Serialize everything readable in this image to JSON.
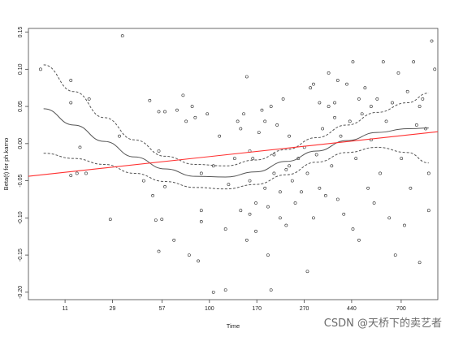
{
  "chart_data": {
    "type": "scatter",
    "xlabel": "Time",
    "ylabel": "Beta(t) for ph.karno",
    "xticks": [
      "11",
      "29",
      "57",
      "100",
      "170",
      "270",
      "440",
      "700"
    ],
    "yticks": [
      -0.2,
      -0.15,
      -0.1,
      -0.05,
      0.0,
      0.05,
      0.1,
      0.15
    ],
    "xlim": [
      0,
      13.5
    ],
    "ylim": [
      -0.21,
      0.155
    ],
    "grid": false,
    "points": [
      [
        0.4,
        0.1
      ],
      [
        1.4,
        0.085
      ],
      [
        1.4,
        0.055
      ],
      [
        1.7,
        -0.005
      ],
      [
        1.6,
        -0.04
      ],
      [
        1.4,
        -0.043
      ],
      [
        2.0,
        0.06
      ],
      [
        1.9,
        -0.04
      ],
      [
        2.7,
        -0.102
      ],
      [
        3.1,
        0.145
      ],
      [
        3.0,
        0.01
      ],
      [
        4.0,
        0.058
      ],
      [
        4.3,
        0.043
      ],
      [
        4.5,
        0.043
      ],
      [
        4.1,
        -0.07
      ],
      [
        4.2,
        -0.103
      ],
      [
        4.3,
        -0.01
      ],
      [
        4.5,
        -0.058
      ],
      [
        4.4,
        -0.102
      ],
      [
        4.3,
        -0.145
      ],
      [
        4.9,
        0.045
      ],
      [
        5.1,
        0.065
      ],
      [
        5.4,
        0.05
      ],
      [
        5.5,
        0.035
      ],
      [
        5.7,
        -0.04
      ],
      [
        5.9,
        0.04
      ],
      [
        4.8,
        -0.13
      ],
      [
        5.3,
        -0.15
      ],
      [
        5.6,
        -0.158
      ],
      [
        5.7,
        -0.09
      ],
      [
        5.7,
        -0.105
      ],
      [
        6.1,
        -0.2
      ],
      [
        6.5,
        -0.197
      ],
      [
        6.3,
        0.01
      ],
      [
        6.1,
        -0.03
      ],
      [
        6.5,
        -0.115
      ],
      [
        6.8,
        -0.02
      ],
      [
        6.9,
        0.03
      ],
      [
        7.0,
        -0.09
      ],
      [
        7.0,
        0.02
      ],
      [
        7.1,
        0.04
      ],
      [
        7.2,
        0.09
      ],
      [
        7.3,
        -0.01
      ],
      [
        7.3,
        -0.095
      ],
      [
        7.3,
        -0.05
      ],
      [
        7.4,
        -0.02
      ],
      [
        7.5,
        -0.08
      ],
      [
        7.5,
        -0.118
      ],
      [
        7.6,
        0.015
      ],
      [
        7.7,
        0.045
      ],
      [
        7.8,
        0.03
      ],
      [
        7.8,
        -0.06
      ],
      [
        7.9,
        -0.085
      ],
      [
        7.9,
        -0.15
      ],
      [
        8.0,
        -0.197
      ],
      [
        8.0,
        0.05
      ],
      [
        8.1,
        -0.04
      ],
      [
        8.1,
        -0.015
      ],
      [
        8.2,
        0.025
      ],
      [
        8.3,
        -0.1
      ],
      [
        8.3,
        -0.065
      ],
      [
        8.4,
        0.06
      ],
      [
        8.5,
        -0.035
      ],
      [
        8.5,
        -0.11
      ],
      [
        8.6,
        0.01
      ],
      [
        8.7,
        -0.05
      ],
      [
        8.8,
        -0.08
      ],
      [
        8.9,
        -0.02
      ],
      [
        9.0,
        -0.065
      ],
      [
        9.1,
        -0.005
      ],
      [
        9.2,
        -0.04
      ],
      [
        9.2,
        -0.172
      ],
      [
        9.3,
        0.075
      ],
      [
        9.4,
        -0.1
      ],
      [
        9.5,
        -0.015
      ],
      [
        9.6,
        -0.06
      ],
      [
        9.7,
        0.02
      ],
      [
        9.8,
        -0.07
      ],
      [
        9.9,
        0.095
      ],
      [
        9.9,
        0.05
      ],
      [
        10.0,
        -0.03
      ],
      [
        10.1,
        0.055
      ],
      [
        10.2,
        -0.075
      ],
      [
        10.3,
        0.01
      ],
      [
        10.4,
        -0.095
      ],
      [
        10.5,
        0.08
      ],
      [
        10.6,
        0.03
      ],
      [
        10.7,
        -0.115
      ],
      [
        10.7,
        0.11
      ],
      [
        10.8,
        -0.02
      ],
      [
        10.9,
        -0.13
      ],
      [
        11.0,
        0.04
      ],
      [
        11.1,
        0.075
      ],
      [
        11.2,
        -0.06
      ],
      [
        11.3,
        0.005
      ],
      [
        11.4,
        -0.08
      ],
      [
        11.5,
        0.06
      ],
      [
        11.6,
        -0.04
      ],
      [
        11.7,
        0.11
      ],
      [
        11.8,
        0.03
      ],
      [
        11.9,
        -0.1
      ],
      [
        12.0,
        0.055
      ],
      [
        12.1,
        -0.15
      ],
      [
        12.2,
        0.095
      ],
      [
        12.3,
        -0.02
      ],
      [
        12.4,
        -0.11
      ],
      [
        12.5,
        0.07
      ],
      [
        12.6,
        -0.06
      ],
      [
        12.7,
        0.11
      ],
      [
        12.8,
        0.025
      ],
      [
        12.9,
        0.05
      ],
      [
        12.9,
        -0.16
      ],
      [
        13.0,
        0.06
      ],
      [
        13.1,
        0.02
      ],
      [
        13.2,
        -0.04
      ],
      [
        13.2,
        -0.09
      ],
      [
        13.3,
        0.138
      ],
      [
        13.4,
        0.1
      ],
      [
        10.9,
        0.06
      ],
      [
        11.3,
        0.05
      ],
      [
        9.4,
        0.08
      ],
      [
        10.1,
        0.035
      ],
      [
        8.6,
        -0.03
      ],
      [
        6.6,
        -0.055
      ],
      [
        7.2,
        -0.13
      ],
      [
        3.8,
        -0.05
      ],
      [
        5.2,
        0.03
      ],
      [
        9.6,
        0.055
      ],
      [
        10.2,
        0.085
      ]
    ],
    "series": [
      {
        "style": "solid",
        "color": "#555555",
        "x": [
          0.5,
          1.5,
          2.5,
          3.5,
          4.5,
          5.5,
          6.5,
          7.5,
          8.5,
          9.5,
          10.5,
          11.5,
          12.5,
          13.2
        ],
        "y": [
          0.047,
          0.025,
          0.003,
          -0.018,
          -0.034,
          -0.044,
          -0.045,
          -0.038,
          -0.024,
          -0.01,
          0.004,
          0.015,
          0.02,
          0.021
        ]
      },
      {
        "style": "dashed",
        "color": "#555555",
        "x": [
          0.5,
          1.5,
          2.5,
          3.5,
          4.5,
          5.5,
          6.5,
          7.5,
          8.5,
          9.5,
          10.5,
          11.5,
          12.5,
          13.2
        ],
        "y": [
          0.106,
          0.07,
          0.035,
          0.005,
          -0.017,
          -0.028,
          -0.03,
          -0.022,
          -0.008,
          0.008,
          0.025,
          0.042,
          0.055,
          0.068
        ]
      },
      {
        "style": "dashed",
        "color": "#555555",
        "x": [
          0.5,
          1.5,
          2.5,
          3.5,
          4.5,
          5.5,
          6.5,
          7.5,
          8.5,
          9.5,
          10.5,
          11.5,
          12.5,
          13.2
        ],
        "y": [
          -0.013,
          -0.02,
          -0.028,
          -0.04,
          -0.051,
          -0.059,
          -0.061,
          -0.055,
          -0.042,
          -0.025,
          -0.012,
          -0.005,
          -0.012,
          -0.026
        ]
      },
      {
        "style": "solid",
        "color": "#ff3030",
        "x": [
          0.0,
          13.5
        ],
        "y": [
          -0.044,
          0.016
        ]
      }
    ]
  },
  "watermark": "CSDN @天桥下的卖艺者"
}
